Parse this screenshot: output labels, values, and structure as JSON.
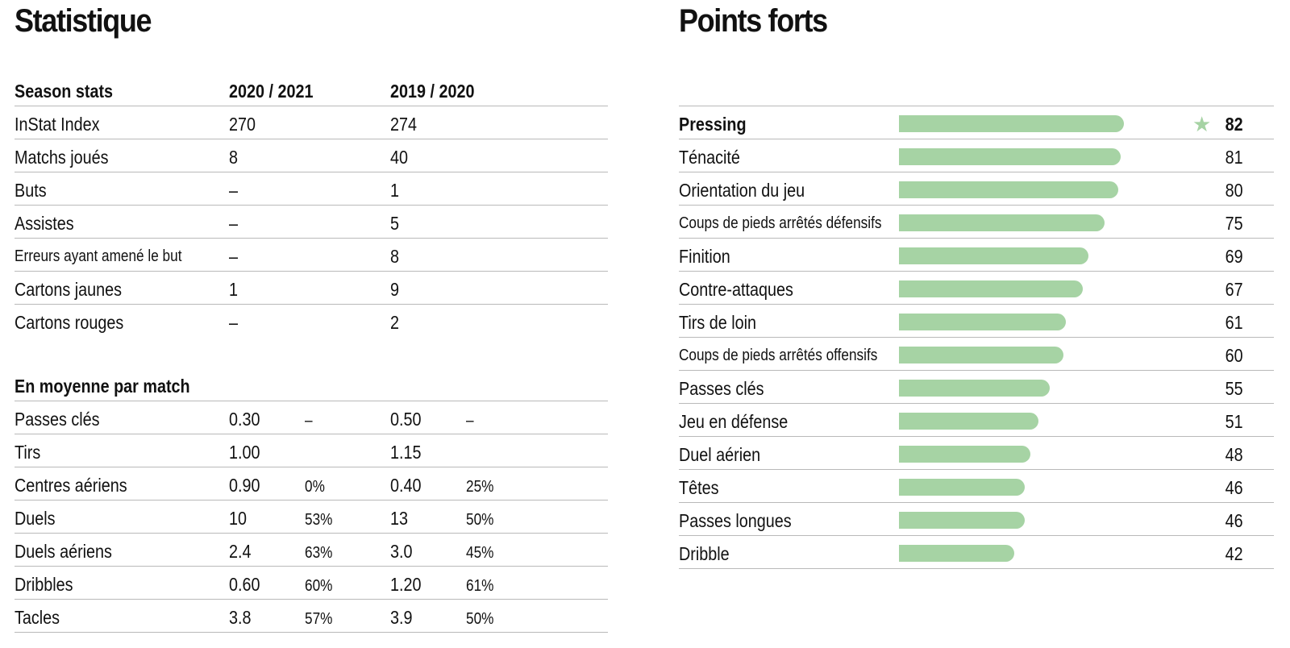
{
  "left": {
    "title": "Statistique",
    "season": {
      "header": [
        "Season stats",
        "2020 / 2021",
        "2019 / 2020"
      ],
      "rows": [
        {
          "label": "InStat Index",
          "v1": "270",
          "v2": "274"
        },
        {
          "label": "Matchs joués",
          "v1": "8",
          "v2": "40"
        },
        {
          "label": "Buts",
          "v1": "–",
          "v2": "1"
        },
        {
          "label": "Assistes",
          "v1": "–",
          "v2": "5"
        },
        {
          "label": "Erreurs ayant amené le but",
          "v1": "–",
          "v2": "8"
        },
        {
          "label": "Cartons jaunes",
          "v1": "1",
          "v2": "9"
        },
        {
          "label": "Cartons rouges",
          "v1": "–",
          "v2": "2"
        }
      ]
    },
    "avg": {
      "header": "En moyenne par match",
      "rows": [
        {
          "label": "Passes clés",
          "v1": "0.30",
          "p1": "–",
          "v2": "0.50",
          "p2": "–"
        },
        {
          "label": "Tirs",
          "v1": "1.00",
          "p1": "",
          "v2": "1.15",
          "p2": ""
        },
        {
          "label": "Centres aériens",
          "v1": "0.90",
          "p1": "0%",
          "v2": "0.40",
          "p2": "25%"
        },
        {
          "label": "Duels",
          "v1": "10",
          "p1": "53%",
          "v2": "13",
          "p2": "50%"
        },
        {
          "label": "Duels aériens",
          "v1": "2.4",
          "p1": "63%",
          "v2": "3.0",
          "p2": "45%"
        },
        {
          "label": "Dribbles",
          "v1": "0.60",
          "p1": "60%",
          "v2": "1.20",
          "p2": "61%"
        },
        {
          "label": "Tacles",
          "v1": "3.8",
          "p1": "57%",
          "v2": "3.9",
          "p2": "50%"
        }
      ]
    }
  },
  "right": {
    "title": "Points forts",
    "star_icon": "star-icon",
    "bar_color": "#a6d3a4"
  },
  "chart_data": {
    "type": "bar",
    "orientation": "horizontal",
    "categories": [
      "Pressing",
      "Ténacité",
      "Orientation du jeu",
      "Coups de pieds arrêtés défensifs",
      "Finition",
      "Contre-attaques",
      "Tirs de loin",
      "Coups de pieds arrêtés offensifs",
      "Passes clés",
      "Jeu en défense",
      "Duel aérien",
      "Têtes",
      "Passes longues",
      "Dribble"
    ],
    "values": [
      82,
      81,
      80,
      75,
      69,
      67,
      61,
      60,
      55,
      51,
      48,
      46,
      46,
      42
    ],
    "xlim": [
      0,
      100
    ],
    "highlight": "Pressing",
    "grid": false
  }
}
